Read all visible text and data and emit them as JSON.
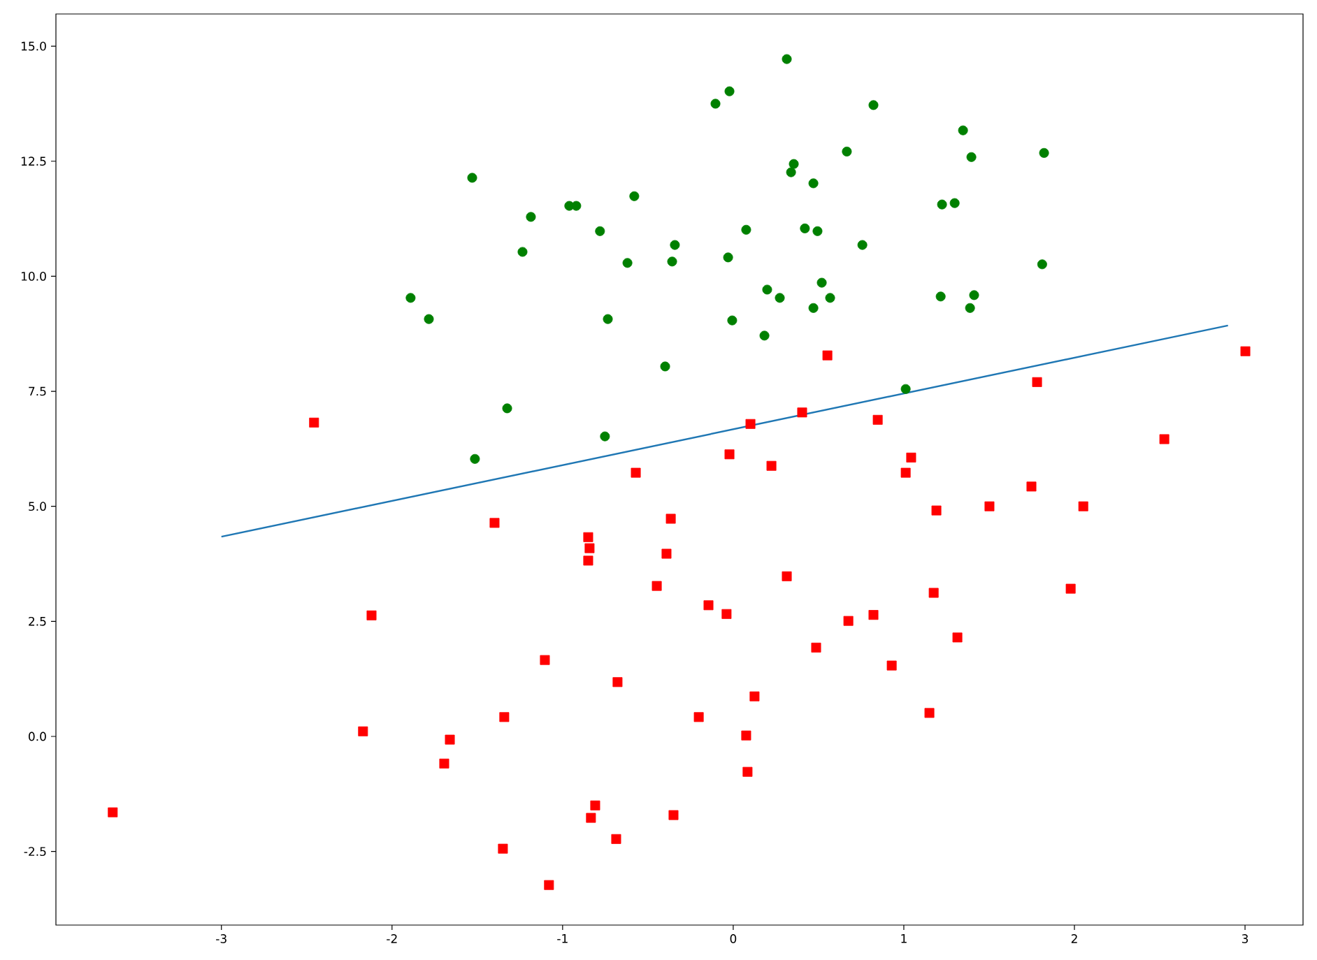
{
  "chart_data": {
    "type": "scatter",
    "xlim": [
      -3.97,
      3.34
    ],
    "ylim": [
      -4.1,
      15.7
    ],
    "xticks": [
      -3,
      -2,
      -1,
      0,
      1,
      2,
      3
    ],
    "yticks": [
      {
        "value": -2.5,
        "label": "-2.5"
      },
      {
        "value": 0,
        "label": "0.0"
      },
      {
        "value": 2.5,
        "label": "2.5"
      },
      {
        "value": 5,
        "label": "5.0"
      },
      {
        "value": 7.5,
        "label": "7.5"
      },
      {
        "value": 10,
        "label": "10.0"
      },
      {
        "value": 12.5,
        "label": "12.5"
      },
      {
        "value": 15,
        "label": "15.0"
      }
    ],
    "series": [
      {
        "marker": "circle",
        "color": "#008000",
        "x": [
          0.314,
          -0.022,
          -0.104,
          0.822,
          1.347,
          1.396,
          1.822,
          0.666,
          0.355,
          0.339,
          0.47,
          1.224,
          1.298,
          0.076,
          0.42,
          0.494,
          0.757,
          -0.342,
          -0.358,
          -0.03,
          1.811,
          0.519,
          0.199,
          0.273,
          0.568,
          0.47,
          1.216,
          1.412,
          1.388,
          -0.006,
          0.183,
          -0.399,
          1.011,
          -1.53,
          -1.186,
          -0.961,
          -0.92,
          -0.58,
          -0.781,
          -1.235,
          -0.62,
          -1.891,
          -1.784,
          -0.735,
          -1.325,
          -0.752,
          -1.514
        ],
        "values": [
          14.72,
          14.02,
          13.75,
          13.72,
          13.17,
          12.59,
          12.68,
          12.71,
          12.44,
          12.26,
          12.02,
          11.56,
          11.59,
          11.01,
          11.04,
          10.98,
          10.68,
          10.68,
          10.32,
          10.41,
          10.26,
          9.86,
          9.71,
          9.53,
          9.53,
          9.31,
          9.56,
          9.59,
          9.31,
          9.04,
          8.71,
          8.04,
          7.55,
          12.14,
          11.29,
          11.53,
          11.53,
          11.74,
          10.98,
          10.53,
          10.29,
          9.53,
          9.07,
          9.07,
          7.13,
          6.52,
          6.03
        ]
      },
      {
        "marker": "square",
        "color": "#ff0000",
        "x": [
          -2.457,
          -1.399,
          -0.85,
          -0.842,
          -0.85,
          -0.571,
          -0.366,
          -0.391,
          -0.448,
          -2.12,
          -1.104,
          -0.678,
          -1.342,
          -2.17,
          -1.661,
          -1.694,
          -3.637,
          -0.809,
          -0.834,
          -0.35,
          -0.686,
          -1.35,
          -1.08,
          0.552,
          3.002,
          1.781,
          0.404,
          0.101,
          0.847,
          2.527,
          -0.022,
          0.224,
          1.043,
          1.011,
          1.748,
          1.191,
          1.502,
          2.052,
          0.314,
          -0.145,
          -0.039,
          0.675,
          0.822,
          1.175,
          1.978,
          1.314,
          0.486,
          0.929,
          0.125,
          -0.202,
          1.15,
          0.076,
          0.084
        ],
        "values": [
          6.82,
          4.64,
          4.33,
          4.09,
          3.82,
          5.73,
          4.73,
          3.97,
          3.27,
          2.63,
          1.66,
          1.18,
          0.42,
          0.11,
          -0.07,
          -0.59,
          -1.65,
          -1.5,
          -1.77,
          -1.71,
          -2.23,
          -2.44,
          -3.23,
          8.28,
          8.37,
          7.7,
          7.04,
          6.79,
          6.88,
          6.46,
          6.13,
          5.88,
          6.06,
          5.73,
          5.43,
          4.91,
          5.0,
          5.0,
          3.48,
          2.85,
          2.66,
          2.51,
          2.64,
          3.12,
          3.21,
          2.15,
          1.93,
          1.54,
          0.87,
          0.42,
          0.51,
          0.02,
          -0.77
        ]
      },
      {
        "type": "line",
        "line_style": "solid",
        "color": "#1f77b4",
        "x": [
          -3,
          2.9
        ],
        "values": [
          4.34,
          8.93
        ]
      }
    ]
  }
}
